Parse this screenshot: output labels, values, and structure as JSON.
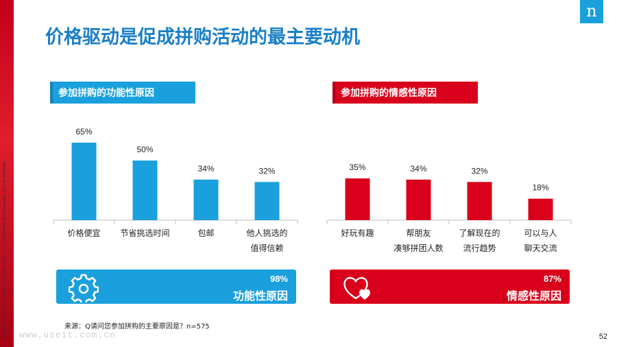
{
  "title": "价格驱动是促成拼购活动的最主要动机",
  "logo_letter": "n",
  "copyright": "Copyright © 2017 The Nielsen Company (US), LLC. Confidential and proprietary. Do not distribute.",
  "colors": {
    "blue": "#1aa0dc",
    "red": "#d9001b",
    "title": "#1a7fc8"
  },
  "chart_data": [
    {
      "type": "bar",
      "title": "参加拼购的功能性原因",
      "categories": [
        [
          "价格便宜"
        ],
        [
          "节省挑选时间"
        ],
        [
          "包邮"
        ],
        [
          "他人挑选的",
          "值得信赖"
        ]
      ],
      "values": [
        65,
        50,
        34,
        32
      ],
      "value_labels": [
        "65%",
        "50%",
        "34%",
        "32%"
      ],
      "color": "#1aa0dc",
      "ylim": [
        0,
        100
      ],
      "grid": false,
      "summary": {
        "percent": "98%",
        "label": "功能性原因",
        "icon": "gear-icon"
      }
    },
    {
      "type": "bar",
      "title": "参加拼购的情感性原因",
      "categories": [
        [
          "好玩有趣"
        ],
        [
          "帮朋友",
          "凑够拼团人数"
        ],
        [
          "了解现在的",
          "流行趋势"
        ],
        [
          "可以与人",
          "聊天交流"
        ]
      ],
      "values": [
        35,
        34,
        32,
        18
      ],
      "value_labels": [
        "35%",
        "34%",
        "32%",
        "18%"
      ],
      "color": "#d9001b",
      "ylim": [
        0,
        100
      ],
      "grid": false,
      "summary": {
        "percent": "87%",
        "label": "情感性原因",
        "icon": "hearts-icon"
      }
    }
  ],
  "source": "来源：Q请问您参加拼购的主要原因是？n=575",
  "watermark": "www.useit.com.cn",
  "page_number": "52"
}
